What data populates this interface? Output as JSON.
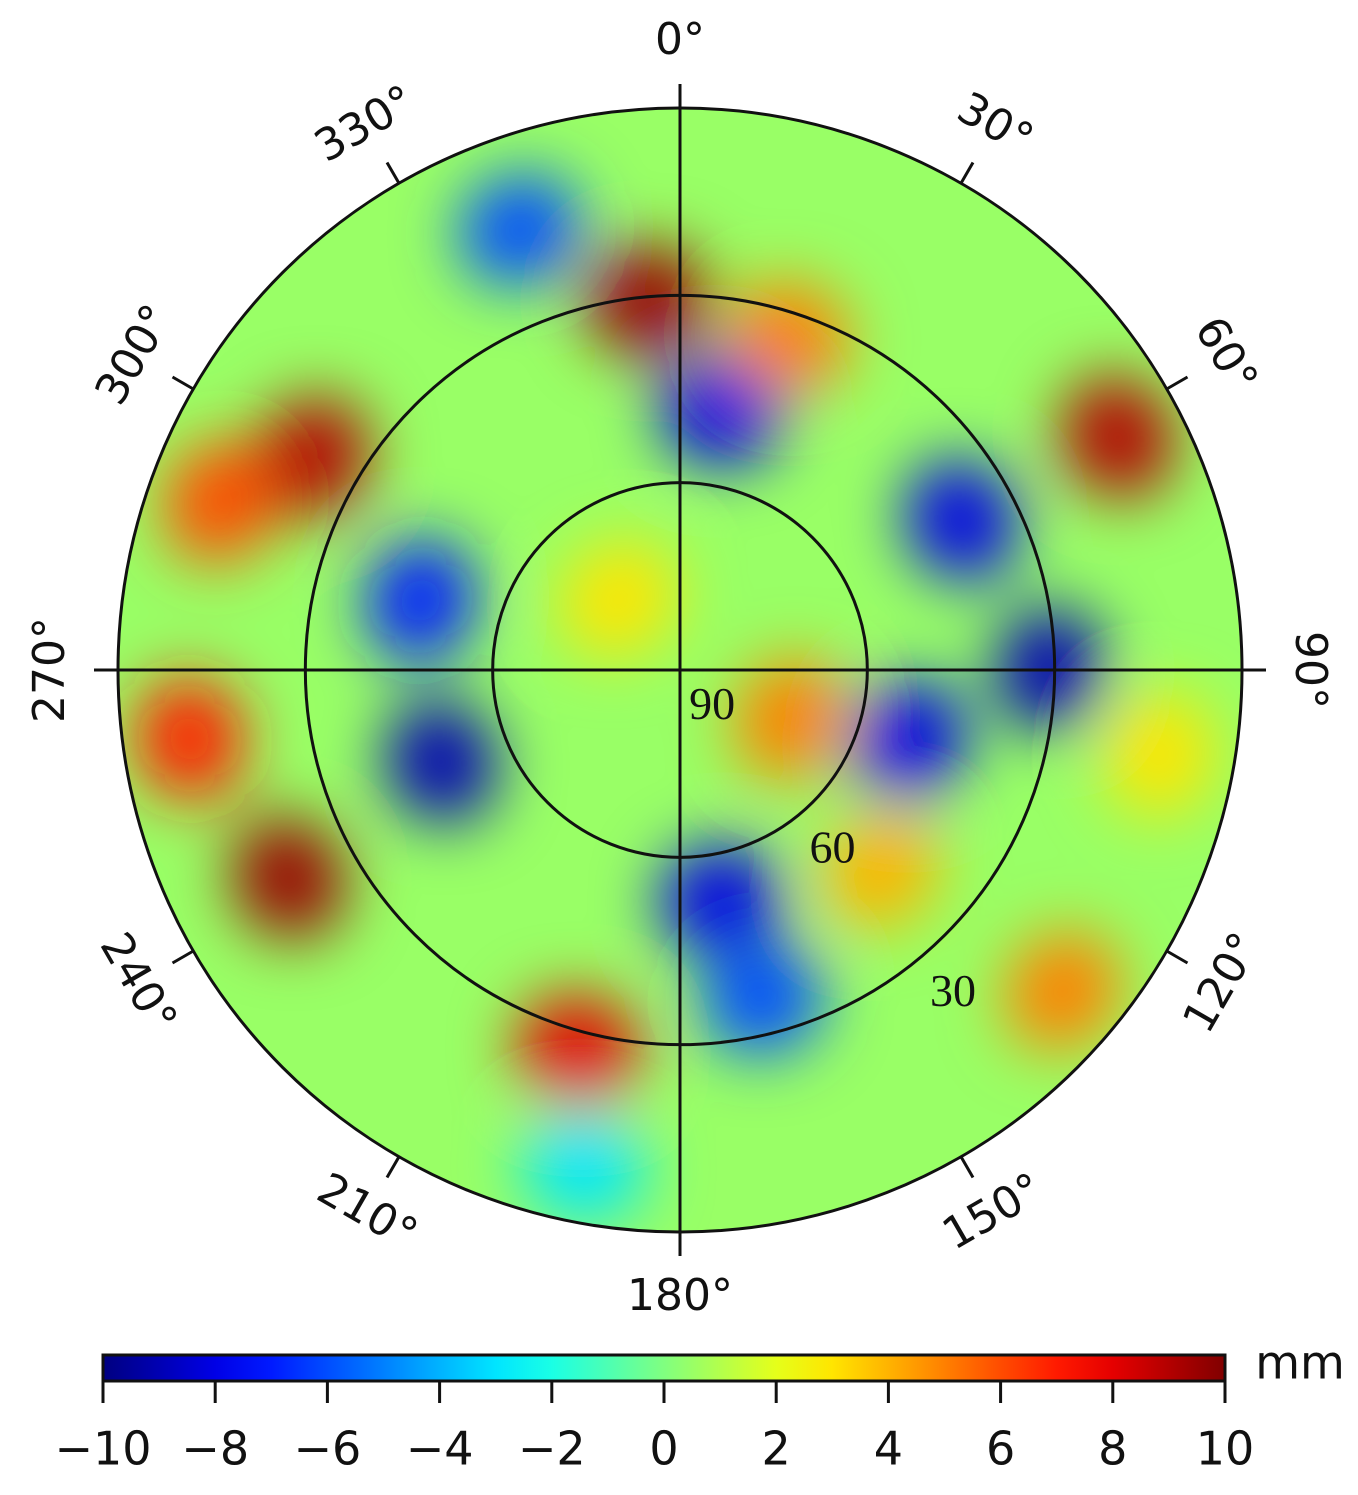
{
  "chart_data": {
    "type": "polar-heatmap",
    "unit": "mm",
    "azticks": [
      {
        "value": 0,
        "label": "0°"
      },
      {
        "value": 30,
        "label": "30°"
      },
      {
        "value": 60,
        "label": "60°"
      },
      {
        "value": 90,
        "label": "90°"
      },
      {
        "value": 120,
        "label": "120°"
      },
      {
        "value": 150,
        "label": "150°"
      },
      {
        "value": 180,
        "label": "180°"
      },
      {
        "value": 210,
        "label": "210°"
      },
      {
        "value": 240,
        "label": "240°"
      },
      {
        "value": 270,
        "label": "270°"
      },
      {
        "value": 300,
        "label": "300°"
      },
      {
        "value": 330,
        "label": "330°"
      }
    ],
    "rlim": [
      90,
      0
    ],
    "rticks": [
      90,
      60,
      30
    ],
    "clim": [
      -10,
      10
    ],
    "cticks": [
      {
        "value": -10,
        "label": "−10"
      },
      {
        "value": -8,
        "label": "−8"
      },
      {
        "value": -6,
        "label": "−6"
      },
      {
        "value": -4,
        "label": "−4"
      },
      {
        "value": -2,
        "label": "−2"
      },
      0,
      2,
      4,
      6,
      8,
      10
    ],
    "background": 0.5,
    "field": [
      {
        "az": 355,
        "el": 30.6,
        "value": 9.5
      },
      {
        "az": 300,
        "el": 22,
        "value": 9
      },
      {
        "az": 290,
        "el": 11.5,
        "value": 6
      },
      {
        "az": 62,
        "el": 10.6,
        "value": 9
      },
      {
        "az": 262,
        "el": 10.7,
        "value": 7
      },
      {
        "az": 242,
        "el": 19,
        "value": 9.5
      },
      {
        "az": 195,
        "el": 27,
        "value": 8
      },
      {
        "az": 130,
        "el": 10,
        "value": 5
      },
      {
        "az": 114,
        "el": 70.6,
        "value": 5
      },
      {
        "az": 249,
        "el": 49,
        "value": -9
      },
      {
        "az": 170,
        "el": 52.7,
        "value": -8
      },
      {
        "az": 9,
        "el": 48,
        "value": -8
      },
      {
        "az": 62,
        "el": 39,
        "value": -8
      },
      {
        "az": 90,
        "el": 30.7,
        "value": -9
      },
      {
        "az": 340,
        "el": 15,
        "value": -6
      },
      {
        "az": 285,
        "el": 47,
        "value": -7
      },
      {
        "az": 107,
        "el": 51.5,
        "value": -8
      },
      {
        "az": 166,
        "el": 35.6,
        "value": -6
      },
      {
        "az": 135,
        "el": 44.7,
        "value": 4
      },
      {
        "az": 18,
        "el": 34,
        "value": 5
      },
      {
        "az": 100,
        "el": 12,
        "value": 3
      },
      {
        "az": 191,
        "el": 9,
        "value": -3
      },
      {
        "az": 319,
        "el": 75,
        "value": 3
      }
    ]
  }
}
